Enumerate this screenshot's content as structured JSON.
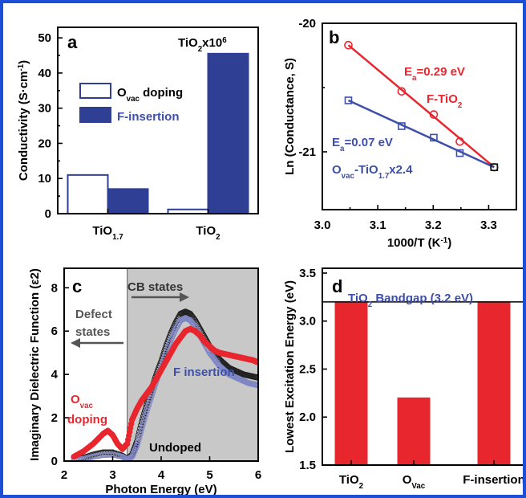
{
  "colors": {
    "frame": "#1c4fd6",
    "red": "#e8262e",
    "blue": "#3d4fa8",
    "dark_blue": "#2e3f94",
    "black": "#111111",
    "gray_shade": "#c8c8c8"
  },
  "chart_data": [
    {
      "panel": "a",
      "type": "bar",
      "title": "",
      "xlabel": "",
      "ylabel": "Conductivity (S·cm⁻¹)",
      "ylim": [
        0,
        53
      ],
      "yticks": [
        0,
        10,
        20,
        30,
        40,
        50
      ],
      "categories": [
        {
          "base": "TiO",
          "sub": "1.7"
        },
        {
          "base": "TiO",
          "sub": "2"
        }
      ],
      "series": [
        {
          "name": "O",
          "name_sub": "vac",
          "name_suffix": " doping",
          "style": "open",
          "values": [
            11,
            1.2
          ]
        },
        {
          "name": "F-insertion",
          "style": "filled",
          "values": [
            7,
            45.5
          ]
        }
      ],
      "annotation": {
        "base": "TiO",
        "sub": "2",
        "suffix": "x10",
        "sup": "6"
      },
      "legend": "upper-left"
    },
    {
      "panel": "b",
      "type": "scatter",
      "title": "",
      "xlabel": "1000/T (K⁻¹)",
      "ylabel": "Ln (Conductance, S)",
      "xlim": [
        3.0,
        3.35
      ],
      "ylim": [
        -21.45,
        -20.0
      ],
      "xticks": [
        3.0,
        3.1,
        3.2,
        3.3
      ],
      "yticks": [
        -20,
        -21
      ],
      "series": [
        {
          "name": "F-TiO2",
          "label": {
            "base": "F-TiO",
            "sub": "2"
          },
          "marker": "circle",
          "x": [
            3.047,
            3.143,
            3.201,
            3.248,
            3.31
          ],
          "y": [
            -20.17,
            -20.53,
            -20.71,
            -20.92,
            -21.12
          ],
          "fit": [
            [
              3.047,
              -20.17
            ],
            [
              3.31,
              -21.12
            ]
          ],
          "ea": {
            "base": "E",
            "sub": "a",
            "value": "=0.29 eV"
          }
        },
        {
          "name": "Ovac-TiO1.7x2.4",
          "label": {
            "base": "O",
            "sub1": "vac",
            "mid": "-TiO",
            "sub2": "1.7",
            "suffix": "x2.4"
          },
          "marker": "square",
          "x": [
            3.047,
            3.143,
            3.201,
            3.248,
            3.31
          ],
          "y": [
            -20.6,
            -20.8,
            -20.89,
            -21.01,
            -21.12
          ],
          "fit": [
            [
              3.047,
              -20.6
            ],
            [
              3.31,
              -21.12
            ]
          ],
          "ea": {
            "base": "E",
            "sub": "a",
            "value": "=0.07 eV"
          }
        }
      ]
    },
    {
      "panel": "c",
      "type": "line",
      "title": "",
      "xlabel": "Photon Energy (eV)",
      "ylabel": "Imaginary Dielectric Function (ε2)",
      "xlim": [
        2,
        6
      ],
      "ylim": [
        0,
        8.9
      ],
      "xticks": [
        2,
        3,
        4,
        5,
        6
      ],
      "yticks": [
        0,
        2,
        4,
        6,
        8
      ],
      "shaded_region": [
        3.3,
        6
      ],
      "annotations": {
        "cb_states": "CB states",
        "defect_line1": "Defect",
        "defect_line2": "states",
        "undoped": "Undoped",
        "f_insertion": "F insertion",
        "ovac_base": "O",
        "ovac_sub": "vac",
        "ovac_line2": "doping"
      },
      "series": [
        {
          "name": "Undoped",
          "marker": "open-circle",
          "x": [
            2.2,
            2.4,
            2.6,
            2.8,
            3.0,
            3.2,
            3.3,
            3.4,
            3.5,
            3.6,
            3.7,
            3.8,
            3.9,
            4.0,
            4.1,
            4.2,
            4.3,
            4.4,
            4.5,
            4.6,
            4.7,
            4.8,
            4.9,
            5.0,
            5.1,
            5.2,
            5.3,
            5.4,
            5.5,
            5.6,
            5.7,
            5.8,
            5.9,
            6.0
          ],
          "y": [
            0.05,
            0.15,
            0.3,
            0.4,
            0.4,
            0.25,
            0.1,
            0.3,
            0.9,
            1.8,
            2.6,
            3.3,
            4.0,
            4.6,
            5.3,
            5.9,
            6.4,
            6.8,
            6.9,
            6.8,
            6.5,
            6.1,
            5.7,
            5.3,
            5.0,
            4.7,
            4.5,
            4.3,
            4.2,
            4.1,
            4.0,
            3.95,
            3.9,
            3.85
          ]
        },
        {
          "name": "F insertion",
          "marker": "open-circle",
          "x": [
            2.2,
            2.4,
            2.6,
            2.8,
            3.0,
            3.2,
            3.3,
            3.4,
            3.5,
            3.6,
            3.7,
            3.8,
            3.9,
            4.0,
            4.1,
            4.2,
            4.3,
            4.4,
            4.5,
            4.6,
            4.7,
            4.8,
            4.9,
            5.0,
            5.1,
            5.2,
            5.3,
            5.4,
            5.5,
            5.6,
            5.7,
            5.8,
            5.9,
            6.0
          ],
          "y": [
            0.03,
            0.1,
            0.2,
            0.28,
            0.3,
            0.2,
            0.08,
            0.2,
            0.7,
            1.5,
            2.3,
            3.0,
            3.7,
            4.3,
            5.0,
            5.6,
            6.1,
            6.5,
            6.6,
            6.5,
            6.2,
            5.8,
            5.4,
            5.0,
            4.7,
            4.4,
            4.2,
            4.0,
            3.9,
            3.8,
            3.7,
            3.6,
            3.55,
            3.5
          ]
        },
        {
          "name": "Ovac doping",
          "marker": "filled-circle",
          "x": [
            2.2,
            2.4,
            2.6,
            2.8,
            2.9,
            3.0,
            3.1,
            3.2,
            3.3,
            3.4,
            3.5,
            3.6,
            3.7,
            3.8,
            3.9,
            4.0,
            4.1,
            4.2,
            4.3,
            4.4,
            4.5,
            4.6,
            4.7,
            4.8,
            4.9,
            5.0,
            5.1,
            5.2,
            5.3,
            5.4,
            5.5,
            5.6,
            5.7,
            5.8,
            5.9,
            6.0
          ],
          "y": [
            0.2,
            0.45,
            0.8,
            1.25,
            1.4,
            1.2,
            0.8,
            0.55,
            0.8,
            1.9,
            2.4,
            2.8,
            3.1,
            3.4,
            3.8,
            4.2,
            4.6,
            5.0,
            5.4,
            5.7,
            6.0,
            6.1,
            6.0,
            5.8,
            5.5,
            5.3,
            5.1,
            5.0,
            4.95,
            4.9,
            4.85,
            4.8,
            4.75,
            4.7,
            4.65,
            4.55
          ]
        }
      ]
    },
    {
      "panel": "d",
      "type": "bar",
      "title": "",
      "xlabel": "",
      "ylabel": "Lowest Excitation Energy (eV)",
      "ylim": [
        1.5,
        3.55
      ],
      "yticks": [
        1.5,
        2.0,
        2.5,
        3.0,
        3.5
      ],
      "categories": [
        {
          "base": "TiO",
          "sub": "2"
        },
        {
          "base": "O",
          "sub": "Vac"
        },
        {
          "base": "F-insertion",
          "sub": ""
        }
      ],
      "values": [
        3.2,
        2.2,
        3.2
      ],
      "reference_line": {
        "value": 3.2,
        "label_base": "TiO",
        "label_sub": "2",
        "label_suffix": " Bandgap (3.2 eV)"
      }
    }
  ]
}
